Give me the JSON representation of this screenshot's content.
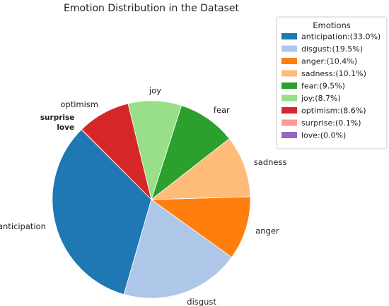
{
  "chart_data": {
    "type": "pie",
    "title": "Emotion Distribution in the Dataset",
    "legend": {
      "title": "Emotions",
      "placement": "top-right, outside"
    },
    "slices": [
      {
        "label": "anticipation",
        "value": 33.0,
        "color": "#1f77b4",
        "legend_text": "anticipation:(33.0%)"
      },
      {
        "label": "disgust",
        "value": 19.5,
        "color": "#aec7e8",
        "legend_text": "disgust:(19.5%)"
      },
      {
        "label": "anger",
        "value": 10.4,
        "color": "#ff7f0e",
        "legend_text": "anger:(10.4%)"
      },
      {
        "label": "sadness",
        "value": 10.1,
        "color": "#ffbb78",
        "legend_text": "sadness:(10.1%)"
      },
      {
        "label": "fear",
        "value": 9.5,
        "color": "#2ca02c",
        "legend_text": "fear:(9.5%)"
      },
      {
        "label": "joy",
        "value": 8.7,
        "color": "#98df8a",
        "legend_text": "joy:(8.7%)"
      },
      {
        "label": "optimism",
        "value": 8.6,
        "color": "#d62728",
        "legend_text": "optimism:(8.6%)"
      },
      {
        "label": "surprise",
        "value": 0.1,
        "color": "#ff9896",
        "legend_text": "surprise:(0.1%)"
      },
      {
        "label": "love",
        "value": 0.0,
        "color": "#9467bd",
        "legend_text": "love:(0.0%)"
      }
    ]
  }
}
